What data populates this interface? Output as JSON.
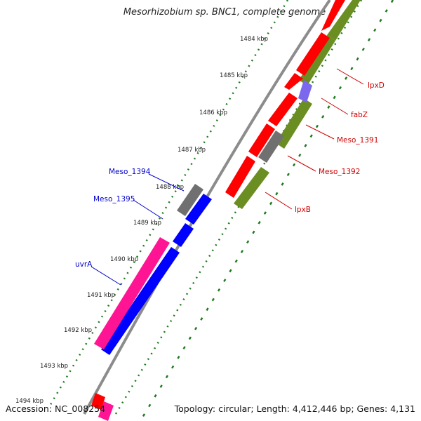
{
  "title": "Mesorhizobium sp. BNC1, complete genome",
  "accession": "Accession: NC_008254",
  "summary": "Topology: circular; Length: 4,412,446 bp; Genes: 4,131",
  "colors": {
    "backbone": "#8c8c8c",
    "tick": "#1f7a1f",
    "forward_cds": "#ff0000",
    "reverse_cds": "#0000ff",
    "forward_gene": "#6b8e23",
    "reverse_gene": "#ff1493",
    "other_forward": "#707070",
    "other_reverse": "#707070",
    "highlight": "#7b68ee",
    "label_forward": "#d00000",
    "label_reverse": "#0000cc"
  },
  "ticks": [
    "1484 kbp",
    "1485 kbp",
    "1486 kbp",
    "1487 kbp",
    "1488 kbp",
    "1489 kbp",
    "1490 kbp",
    "1491 kbp",
    "1492 kbp",
    "1493 kbp",
    "1494 kbp"
  ],
  "forward_labels": [
    "lpxD",
    "fabZ",
    "Meso_1391",
    "Meso_1392",
    "lpxB"
  ],
  "reverse_labels": [
    "Meso_1394",
    "Meso_1395",
    "uvrA"
  ]
}
